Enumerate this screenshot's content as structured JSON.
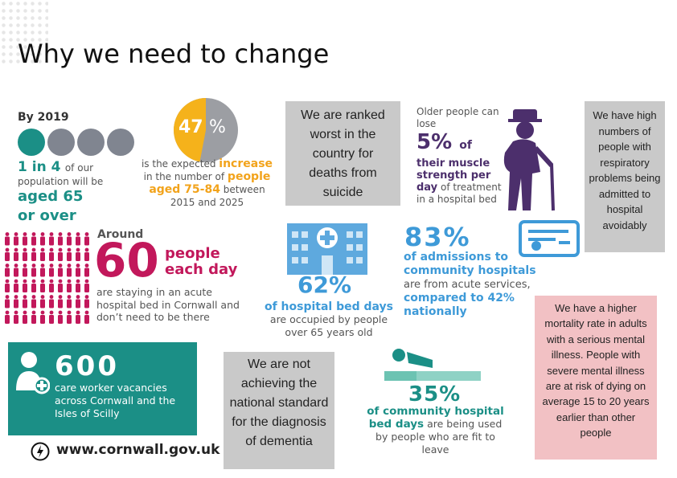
{
  "title": "Why we need to change",
  "by2019": {
    "label": "By 2019",
    "line1_bold": "1 in 4",
    "line1_rest": "of our",
    "line2": "population will be",
    "line3": "aged 65",
    "line4": "or over",
    "colors": {
      "teal": "#1b8f86",
      "grey": "#808590"
    }
  },
  "pie": {
    "value_percent": 47,
    "number": "47",
    "pct": "%",
    "line1_rest": "is the expected",
    "line1_bold": "increase",
    "line2_rest": "in the number of",
    "line2_bold": "people",
    "line3_bold": "aged 75-84",
    "line3_rest": "between",
    "line4": "2015 and 2025",
    "colors": {
      "fill": "#f5b21b",
      "rest": "#9c9ea3"
    }
  },
  "suicide_box": {
    "text": "We are ranked worst in the country for deaths from suicide"
  },
  "muscle": {
    "line1": "Older people can",
    "line2": "lose",
    "number": "5%",
    "of": "of",
    "bold1": "their muscle",
    "bold2": "strength per",
    "bold3": "day",
    "rest3": "of treatment",
    "line4": "in a hospital bed"
  },
  "respiratory_box": {
    "text": "We have high numbers of people with respiratory problems being admitted to hospital avoidably"
  },
  "around60": {
    "around": "Around",
    "number": "60",
    "people": "people",
    "each_day": "each day",
    "line1": "are staying in an acute",
    "line2": "hospital bed in Cornwall and",
    "line3": "don’t need to be there"
  },
  "beddays": {
    "number": "62%",
    "bold": "of hospital bed days",
    "line2": "are occupied by people",
    "line3": "over 65 years old"
  },
  "admissions": {
    "number": "83%",
    "bold1": "of admissions to",
    "bold2": "community hospitals",
    "line3": "are from acute services,",
    "bold4": "compared to 42%",
    "bold5": "nationally"
  },
  "mortality_box": {
    "text": "We have a higher mortality rate in adults with a serious mental illness. People with severe mental illness are at risk of dying on average 15 to 20 years earlier than other people"
  },
  "care": {
    "number": "600",
    "line1": "care worker vacancies",
    "line2": "across Cornwall and the",
    "line3": "Isles of Scilly"
  },
  "dementia_box": {
    "text": "We are not achieving the national standard for the diagnosis of dementia"
  },
  "community": {
    "number": "35%",
    "bold1": "of community hospital",
    "bold2": "bed days",
    "rest2": "are being used",
    "line3": "by people who are fit to",
    "line4": "leave"
  },
  "footer": {
    "url": "www.cornwall.gov.uk"
  }
}
